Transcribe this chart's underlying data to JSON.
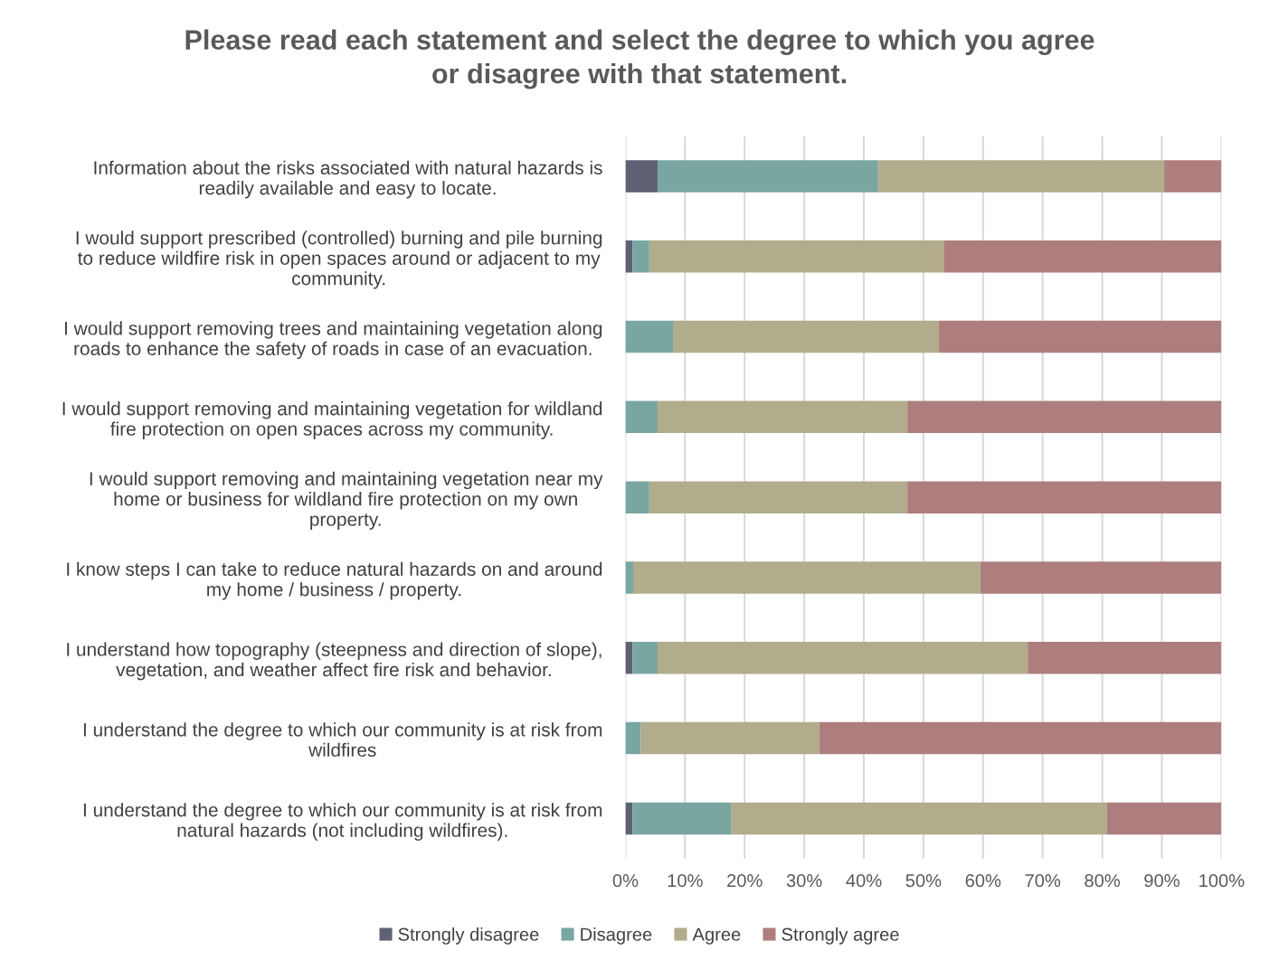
{
  "chart_data": {
    "type": "bar",
    "orientation": "horizontal",
    "stacked": true,
    "title": "Please read each statement and select the degree to which you agree\nor disagree with that statement.",
    "categories": [
      "Information about the risks associated with natural hazards is\nreadily available and easy to locate.",
      "I would support prescribed (controlled) burning and pile burning\nto reduce wildfire risk in open spaces around or adjacent to my\ncommunity.",
      "I would support removing trees and maintaining vegetation along\nroads to enhance the safety of roads in case of an evacuation.",
      "I would support removing and maintaining vegetation for wildland\nfire protection on open spaces across my community.",
      "I would support removing and maintaining vegetation near my\nhome or business for wildland fire protection on my own\nproperty.",
      "I know steps I can take to reduce natural hazards on and around\nmy home / business / property.",
      "I understand how topography (steepness and direction of slope),\nvegetation, and weather affect fire risk and behavior.",
      "I understand the degree to which our community is at risk from\nwildfires",
      "I understand the degree to which our community is at risk from\nnatural hazards (not including wildfires)."
    ],
    "series": [
      {
        "name": "Strongly disagree",
        "color": "#5f6275",
        "values": [
          5.4,
          1.2,
          0,
          0,
          0,
          0,
          1.2,
          0,
          1.2
        ]
      },
      {
        "name": "Disagree",
        "color": "#7aa6a2",
        "values": [
          37.0,
          2.8,
          8.1,
          5.4,
          4.0,
          1.3,
          4.2,
          2.6,
          16.5
        ]
      },
      {
        "name": "Agree",
        "color": "#b1ac8c",
        "values": [
          48.0,
          49.4,
          44.5,
          41.9,
          43.3,
          58.2,
          62.1,
          29.9,
          63.1
        ]
      },
      {
        "name": "Strongly agree",
        "color": "#ae7e7e",
        "values": [
          9.6,
          46.6,
          47.4,
          52.7,
          52.7,
          40.5,
          32.5,
          67.5,
          19.2
        ]
      }
    ],
    "xlim": [
      0,
      100
    ],
    "xticks": [
      {
        "value": 0,
        "label": "0%"
      },
      {
        "value": 10,
        "label": "10%"
      },
      {
        "value": 20,
        "label": "20%"
      },
      {
        "value": 30,
        "label": "30%"
      },
      {
        "value": 40,
        "label": "40%"
      },
      {
        "value": 50,
        "label": "50%"
      },
      {
        "value": 60,
        "label": "60%"
      },
      {
        "value": 70,
        "label": "70%"
      },
      {
        "value": 80,
        "label": "80%"
      },
      {
        "value": 90,
        "label": "90%"
      },
      {
        "value": 100,
        "label": "100%"
      }
    ],
    "grid": "x",
    "legend": "bottom"
  }
}
